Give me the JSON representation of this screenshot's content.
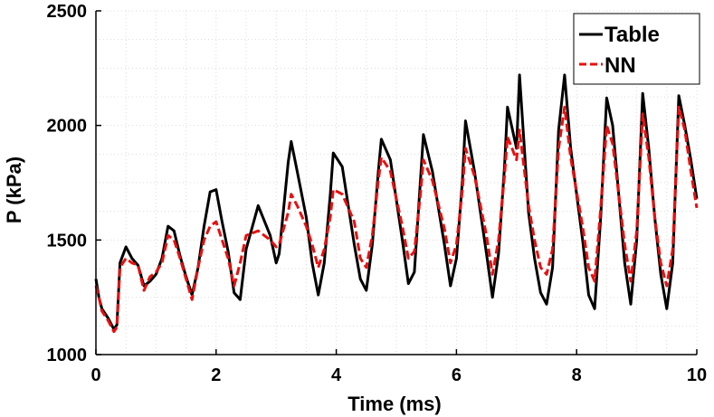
{
  "chart_data": {
    "type": "line",
    "title": "",
    "xlabel": "Time (ms)",
    "ylabel": "P (kPa)",
    "xlim": [
      0,
      10
    ],
    "ylim": [
      1000,
      2500
    ],
    "xticks": [
      0,
      2,
      4,
      6,
      8,
      10
    ],
    "yticks": [
      1000,
      1500,
      2000,
      2500
    ],
    "xtick_labels": [
      "0",
      "2",
      "4",
      "6",
      "8",
      "10"
    ],
    "ytick_labels": [
      "1000",
      "1500",
      "2000",
      "2500"
    ],
    "grid": true,
    "legend_position": "top-right",
    "series": [
      {
        "name": "Table",
        "color": "#000000",
        "line_style": "solid",
        "points": [
          [
            0.0,
            1330
          ],
          [
            0.05,
            1250
          ],
          [
            0.1,
            1200
          ],
          [
            0.2,
            1160
          ],
          [
            0.3,
            1110
          ],
          [
            0.35,
            1130
          ],
          [
            0.4,
            1400
          ],
          [
            0.5,
            1470
          ],
          [
            0.6,
            1420
          ],
          [
            0.7,
            1390
          ],
          [
            0.8,
            1300
          ],
          [
            0.9,
            1320
          ],
          [
            1.0,
            1350
          ],
          [
            1.1,
            1420
          ],
          [
            1.2,
            1560
          ],
          [
            1.3,
            1540
          ],
          [
            1.4,
            1430
          ],
          [
            1.5,
            1340
          ],
          [
            1.6,
            1260
          ],
          [
            1.7,
            1380
          ],
          [
            1.8,
            1560
          ],
          [
            1.9,
            1710
          ],
          [
            2.0,
            1720
          ],
          [
            2.1,
            1580
          ],
          [
            2.2,
            1450
          ],
          [
            2.3,
            1270
          ],
          [
            2.4,
            1240
          ],
          [
            2.5,
            1460
          ],
          [
            2.7,
            1650
          ],
          [
            2.9,
            1520
          ],
          [
            3.0,
            1400
          ],
          [
            3.05,
            1440
          ],
          [
            3.2,
            1840
          ],
          [
            3.25,
            1930
          ],
          [
            3.35,
            1800
          ],
          [
            3.5,
            1600
          ],
          [
            3.6,
            1400
          ],
          [
            3.7,
            1260
          ],
          [
            3.8,
            1400
          ],
          [
            3.9,
            1700
          ],
          [
            3.95,
            1880
          ],
          [
            4.1,
            1820
          ],
          [
            4.3,
            1480
          ],
          [
            4.4,
            1330
          ],
          [
            4.5,
            1280
          ],
          [
            4.6,
            1480
          ],
          [
            4.7,
            1800
          ],
          [
            4.75,
            1940
          ],
          [
            4.9,
            1850
          ],
          [
            5.1,
            1500
          ],
          [
            5.2,
            1310
          ],
          [
            5.3,
            1360
          ],
          [
            5.4,
            1760
          ],
          [
            5.45,
            1960
          ],
          [
            5.6,
            1800
          ],
          [
            5.8,
            1480
          ],
          [
            5.9,
            1300
          ],
          [
            6.0,
            1420
          ],
          [
            6.1,
            1760
          ],
          [
            6.15,
            2020
          ],
          [
            6.3,
            1800
          ],
          [
            6.5,
            1440
          ],
          [
            6.6,
            1250
          ],
          [
            6.7,
            1440
          ],
          [
            6.8,
            1820
          ],
          [
            6.85,
            2080
          ],
          [
            7.0,
            1900
          ],
          [
            7.05,
            2220
          ],
          [
            7.2,
            1620
          ],
          [
            7.3,
            1420
          ],
          [
            7.4,
            1270
          ],
          [
            7.5,
            1220
          ],
          [
            7.6,
            1380
          ],
          [
            7.7,
            1980
          ],
          [
            7.8,
            2220
          ],
          [
            7.9,
            1900
          ],
          [
            8.1,
            1500
          ],
          [
            8.2,
            1260
          ],
          [
            8.3,
            1200
          ],
          [
            8.4,
            1600
          ],
          [
            8.5,
            2120
          ],
          [
            8.6,
            2000
          ],
          [
            8.7,
            1700
          ],
          [
            8.8,
            1400
          ],
          [
            8.9,
            1220
          ],
          [
            9.0,
            1500
          ],
          [
            9.1,
            2140
          ],
          [
            9.2,
            1900
          ],
          [
            9.3,
            1600
          ],
          [
            9.4,
            1350
          ],
          [
            9.5,
            1200
          ],
          [
            9.6,
            1400
          ],
          [
            9.7,
            2130
          ],
          [
            9.8,
            2000
          ],
          [
            9.9,
            1850
          ],
          [
            10.0,
            1680
          ]
        ]
      },
      {
        "name": "NN",
        "color": "#e81010",
        "line_style": "dashed",
        "points": [
          [
            0.0,
            1300
          ],
          [
            0.05,
            1250
          ],
          [
            0.1,
            1190
          ],
          [
            0.2,
            1150
          ],
          [
            0.3,
            1100
          ],
          [
            0.35,
            1120
          ],
          [
            0.4,
            1380
          ],
          [
            0.5,
            1420
          ],
          [
            0.6,
            1400
          ],
          [
            0.7,
            1390
          ],
          [
            0.8,
            1280
          ],
          [
            0.9,
            1340
          ],
          [
            1.0,
            1360
          ],
          [
            1.1,
            1400
          ],
          [
            1.2,
            1520
          ],
          [
            1.3,
            1500
          ],
          [
            1.4,
            1420
          ],
          [
            1.5,
            1330
          ],
          [
            1.6,
            1240
          ],
          [
            1.7,
            1380
          ],
          [
            1.8,
            1500
          ],
          [
            1.9,
            1560
          ],
          [
            2.0,
            1580
          ],
          [
            2.1,
            1500
          ],
          [
            2.2,
            1420
          ],
          [
            2.3,
            1300
          ],
          [
            2.4,
            1400
          ],
          [
            2.5,
            1520
          ],
          [
            2.7,
            1540
          ],
          [
            2.9,
            1500
          ],
          [
            3.0,
            1470
          ],
          [
            3.05,
            1480
          ],
          [
            3.2,
            1620
          ],
          [
            3.25,
            1700
          ],
          [
            3.35,
            1650
          ],
          [
            3.5,
            1560
          ],
          [
            3.6,
            1480
          ],
          [
            3.7,
            1380
          ],
          [
            3.8,
            1460
          ],
          [
            3.9,
            1600
          ],
          [
            3.95,
            1720
          ],
          [
            4.1,
            1700
          ],
          [
            4.3,
            1580
          ],
          [
            4.4,
            1420
          ],
          [
            4.5,
            1380
          ],
          [
            4.6,
            1520
          ],
          [
            4.7,
            1760
          ],
          [
            4.75,
            1860
          ],
          [
            4.9,
            1800
          ],
          [
            5.1,
            1560
          ],
          [
            5.2,
            1420
          ],
          [
            5.3,
            1450
          ],
          [
            5.4,
            1700
          ],
          [
            5.45,
            1850
          ],
          [
            5.6,
            1760
          ],
          [
            5.8,
            1550
          ],
          [
            5.9,
            1400
          ],
          [
            6.0,
            1480
          ],
          [
            6.1,
            1720
          ],
          [
            6.15,
            1900
          ],
          [
            6.3,
            1780
          ],
          [
            6.5,
            1520
          ],
          [
            6.6,
            1350
          ],
          [
            6.7,
            1500
          ],
          [
            6.8,
            1780
          ],
          [
            6.85,
            1950
          ],
          [
            7.0,
            1850
          ],
          [
            7.05,
            1980
          ],
          [
            7.2,
            1650
          ],
          [
            7.3,
            1500
          ],
          [
            7.4,
            1380
          ],
          [
            7.5,
            1350
          ],
          [
            7.6,
            1460
          ],
          [
            7.7,
            1900
          ],
          [
            7.8,
            2080
          ],
          [
            7.9,
            1860
          ],
          [
            8.1,
            1560
          ],
          [
            8.2,
            1380
          ],
          [
            8.3,
            1320
          ],
          [
            8.4,
            1640
          ],
          [
            8.5,
            2000
          ],
          [
            8.6,
            1920
          ],
          [
            8.7,
            1700
          ],
          [
            8.8,
            1480
          ],
          [
            8.9,
            1320
          ],
          [
            9.0,
            1540
          ],
          [
            9.1,
            2050
          ],
          [
            9.2,
            1860
          ],
          [
            9.3,
            1600
          ],
          [
            9.4,
            1400
          ],
          [
            9.5,
            1300
          ],
          [
            9.6,
            1460
          ],
          [
            9.7,
            2080
          ],
          [
            9.8,
            1980
          ],
          [
            9.9,
            1800
          ],
          [
            10.0,
            1640
          ]
        ]
      }
    ]
  }
}
